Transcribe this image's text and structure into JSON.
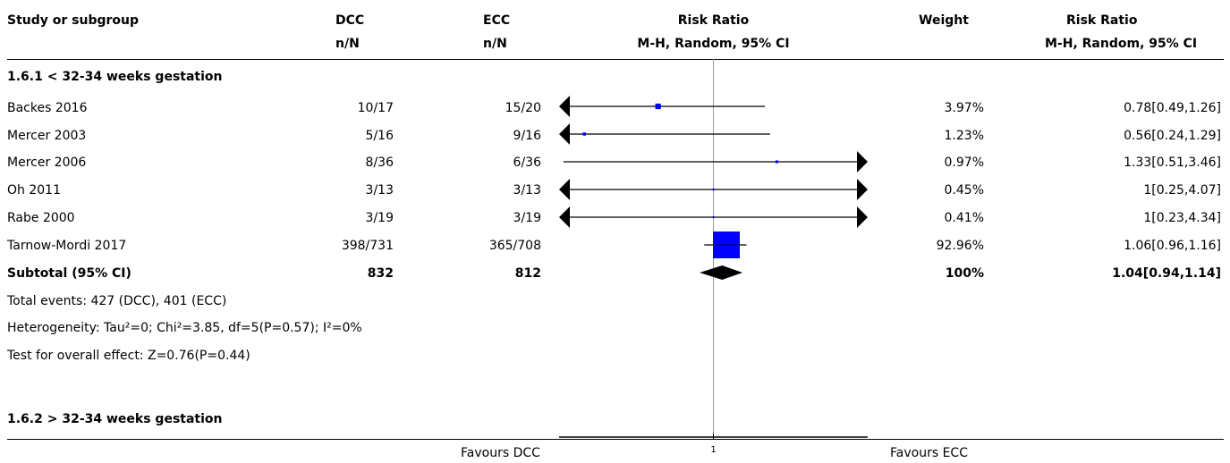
{
  "header": {
    "col_study": "Study or subgroup",
    "col_dcc": "DCC",
    "col_dcc_sub": "n/N",
    "col_ecc": "ECC",
    "col_ecc_sub": "n/N",
    "col_rr": "Risk Ratio",
    "col_rr_sub": "M-H, Random, 95% CI",
    "col_weight": "Weight",
    "col_rr2": "Risk Ratio",
    "col_rr2_sub": "M-H, Random, 95% CI"
  },
  "subgroup1": {
    "title": "1.6.1 < 32-34 weeks gestation",
    "subtotal": {
      "label": "Subtotal (95% CI)",
      "dcc": "832",
      "ecc": "812",
      "weight": "100%",
      "ci": "1.04[0.94,1.14]"
    },
    "total_events": "Total events: 427 (DCC), 401 (ECC)",
    "heterogeneity": "Heterogeneity: Tau²=0; Chi²=3.85, df=5(P=0.57); I²=0%",
    "overall_effect": "Test for overall effect: Z=0.76(P=0.44)"
  },
  "subgroup2": {
    "title": "1.6.2 > 32-34 weeks gestation"
  },
  "footer": {
    "favours_left": "Favours DCC",
    "favours_right": "Favours ECC",
    "axis_tick": "1"
  },
  "colors": {
    "marker": "#0000ff",
    "line": "#000000",
    "null_line": "#999999"
  },
  "chart_data": {
    "type": "forest",
    "scale": "log",
    "xlim": [
      0.5,
      2
    ],
    "null_value": 1,
    "studies": [
      {
        "study": "Backes 2016",
        "dcc": "10/17",
        "ecc": "15/20",
        "weight": "3.97%",
        "weight_value": 3.97,
        "ci_text": "0.78[0.49,1.26]",
        "rr": 0.78,
        "lo": 0.49,
        "hi": 1.26
      },
      {
        "study": "Mercer 2003",
        "dcc": "5/16",
        "ecc": "9/16",
        "weight": "1.23%",
        "weight_value": 1.23,
        "ci_text": "0.56[0.24,1.29]",
        "rr": 0.56,
        "lo": 0.24,
        "hi": 1.29
      },
      {
        "study": "Mercer 2006",
        "dcc": "8/36",
        "ecc": "6/36",
        "weight": "0.97%",
        "weight_value": 0.97,
        "ci_text": "1.33[0.51,3.46]",
        "rr": 1.33,
        "lo": 0.51,
        "hi": 3.46
      },
      {
        "study": "Oh 2011",
        "dcc": "3/13",
        "ecc": "3/13",
        "weight": "0.45%",
        "weight_value": 0.45,
        "ci_text": "1[0.25,4.07]",
        "rr": 1,
        "lo": 0.25,
        "hi": 4.07
      },
      {
        "study": "Rabe 2000",
        "dcc": "3/19",
        "ecc": "3/19",
        "weight": "0.41%",
        "weight_value": 0.41,
        "ci_text": "1[0.23,4.34]",
        "rr": 1,
        "lo": 0.23,
        "hi": 4.34
      },
      {
        "study": "Tarnow-Mordi 2017",
        "dcc": "398/731",
        "ecc": "365/708",
        "weight": "92.96%",
        "weight_value": 92.96,
        "ci_text": "1.06[0.96,1.16]",
        "rr": 1.06,
        "lo": 0.96,
        "hi": 1.16
      }
    ],
    "pooled": {
      "rr": 1.04,
      "lo": 0.94,
      "hi": 1.14
    }
  }
}
